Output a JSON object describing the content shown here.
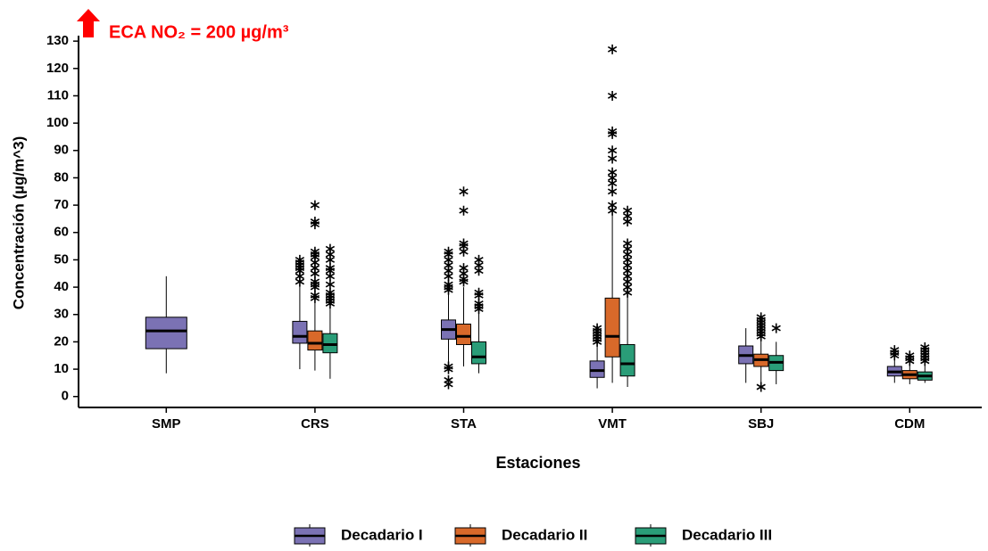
{
  "chart_data": {
    "type": "box",
    "annotation": "ECA NO₂ = 200 µg/m³",
    "y_label": "Concentración (µg/m^3)",
    "x_label": "Estaciones",
    "categories": [
      "SMP",
      "CRS",
      "STA",
      "VMT",
      "SBJ",
      "CDM"
    ],
    "ylim": [
      -4,
      132
    ],
    "yticks": [
      0,
      10,
      20,
      30,
      40,
      50,
      60,
      70,
      80,
      90,
      100,
      110,
      120,
      130
    ],
    "series": [
      {
        "name": "Decadario I",
        "color": "#7b72b4",
        "low": [
          8.5,
          10,
          9,
          3,
          5,
          5
        ],
        "q1": [
          17.5,
          19.5,
          21,
          7,
          12,
          7.5
        ],
        "median": [
          24,
          22,
          24.5,
          9.5,
          15,
          9
        ],
        "q3": [
          29,
          27.5,
          28,
          13,
          18.5,
          11
        ],
        "high": [
          44,
          41,
          38,
          19,
          25,
          14
        ],
        "outliers": [
          [],
          [
            42,
            44,
            46,
            47,
            48,
            49,
            50
          ],
          [
            4.5,
            6,
            10,
            11,
            39,
            40,
            41,
            44,
            46,
            48,
            50,
            52,
            53
          ],
          [
            20,
            21,
            22,
            23,
            24,
            25
          ],
          [],
          [
            15,
            16,
            17
          ]
        ]
      },
      {
        "name": "Decadario II",
        "color": "#d8692a",
        "low": [
          null,
          9.5,
          11,
          5,
          4.5,
          4.5
        ],
        "q1": [
          null,
          17,
          19,
          14.5,
          11,
          6.5
        ],
        "median": [
          null,
          19.5,
          22,
          22,
          13.5,
          8
        ],
        "q3": [
          null,
          24,
          26.5,
          36,
          15.5,
          9.5
        ],
        "high": [
          null,
          35,
          40,
          67,
          21,
          12
        ],
        "outliers": [
          [],
          [
            36,
            37,
            40,
            41,
            42,
            45,
            47,
            49,
            51,
            52,
            53,
            63,
            64,
            70
          ],
          [
            42,
            43,
            45,
            47,
            53,
            55,
            56,
            68,
            75
          ],
          [
            68,
            70,
            75,
            78,
            80,
            82,
            87,
            90,
            96,
            97,
            110,
            127
          ],
          [
            3.5,
            22,
            23,
            24,
            25,
            26,
            27,
            28,
            29
          ],
          [
            13,
            14,
            15
          ]
        ]
      },
      {
        "name": "Decadario III",
        "color": "#2a9d78",
        "low": [
          null,
          6.5,
          8.5,
          3.5,
          4.5,
          5
        ],
        "q1": [
          null,
          16,
          12,
          7.5,
          9.5,
          6
        ],
        "median": [
          null,
          19,
          14.5,
          12,
          12.5,
          7.5
        ],
        "q3": [
          null,
          23,
          20,
          19,
          15,
          9
        ],
        "high": [
          null,
          33,
          31,
          37,
          20,
          12
        ],
        "outliers": [
          [],
          [
            34,
            35,
            36,
            37,
            38,
            41,
            44,
            46,
            47,
            50,
            52,
            54
          ],
          [
            32,
            33,
            34,
            37,
            38,
            46,
            48,
            50
          ],
          [
            38,
            40,
            42,
            44,
            46,
            48,
            50,
            52,
            54,
            56,
            64,
            66,
            68
          ],
          [
            25
          ],
          [
            13,
            14,
            15,
            16,
            17,
            18
          ]
        ]
      }
    ]
  }
}
